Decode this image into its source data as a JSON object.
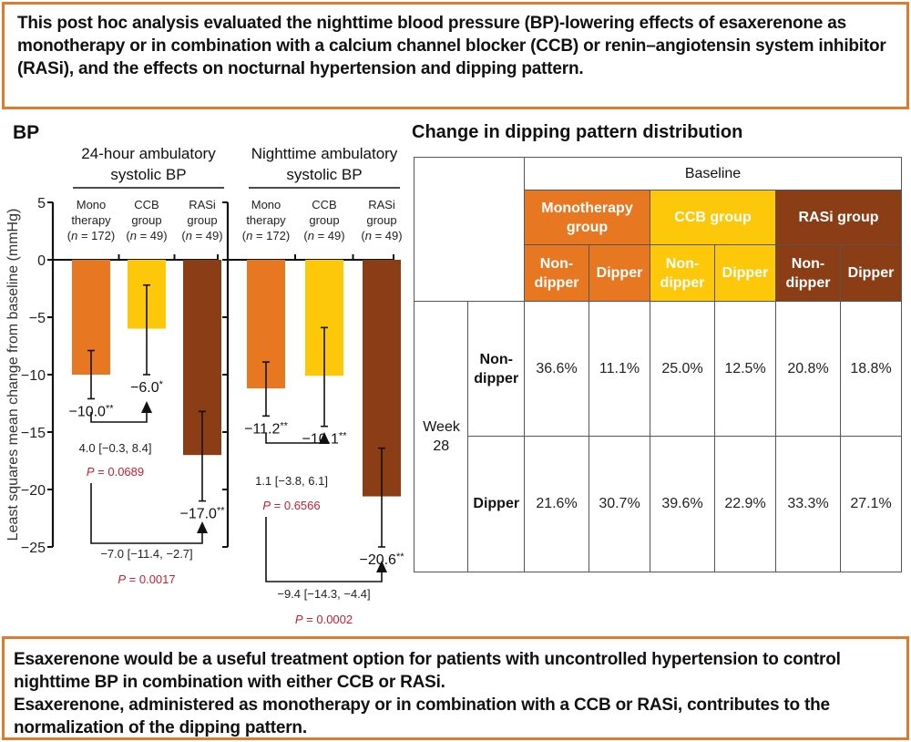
{
  "top_box": {
    "text": "This post hoc analysis evaluated the nighttime blood pressure (BP)-lowering effects of esaxerenone as monotherapy or in combination with a calcium channel blocker (CCB) or renin–angiotensin system inhibitor (RASi), and the effects on nocturnal hypertension and dipping pattern."
  },
  "bottom_box": {
    "line1": "Esaxerenone would be a useful treatment option for patients with uncontrolled hypertension to control nighttime BP in combination with either CCB or RASi.",
    "line2": "Esaxerenone, administered as monotherapy or in combination with a CCB or RASi, contributes to the normalization of the dipping pattern."
  },
  "colors": {
    "mono": "#e87722",
    "ccb": "#fdc70a",
    "rasi": "#8b3d16",
    "p_value": "#c8202e",
    "frame": "#e07b2e"
  },
  "chart_data": {
    "type": "bar",
    "title": "BP",
    "ylabel": "Least squares mean change from baseline (mmHg)",
    "ylim": [
      -25,
      5
    ],
    "yticks": [
      5,
      0,
      -5,
      -10,
      -15,
      -20,
      -25
    ],
    "ytick_labels": [
      "5",
      "0",
      "−5",
      "−10",
      "−15",
      "−20",
      "−25"
    ],
    "grid": false,
    "categories": [
      {
        "line1": "Mono",
        "line2": "therapy",
        "n": "172",
        "key": "mono"
      },
      {
        "line1": "CCB",
        "line2": "group",
        "n": "49",
        "key": "ccb"
      },
      {
        "line1": "RASi",
        "line2": "group",
        "n": "49",
        "key": "rasi"
      }
    ],
    "panels": [
      {
        "title_line1": "24-hour ambulatory",
        "title_line2": "systolic BP",
        "values": [
          -10.0,
          -6.0,
          -17.0
        ],
        "error_low": [
          -12.1,
          -10.0,
          -21.0
        ],
        "error_high": [
          -7.9,
          -2.2,
          -13.2
        ],
        "value_labels": [
          "−10.0",
          "−6.0",
          "−17.0"
        ],
        "significance": [
          "**",
          "*",
          "**"
        ],
        "comparisons": [
          {
            "from": 0,
            "to": 1,
            "diff": "4.0 [−0.3, 8.4]",
            "p_label": "P",
            "p_value": " = 0.0689"
          },
          {
            "from": 0,
            "to": 2,
            "diff": "−7.0 [−11.4, −2.7]",
            "p_label": "P",
            "p_value": " = 0.0017"
          }
        ]
      },
      {
        "title_line1": "Nighttime ambulatory",
        "title_line2": "systolic BP",
        "values": [
          -11.2,
          -10.1,
          -20.6
        ],
        "error_low": [
          -13.6,
          -14.5,
          -25.0
        ],
        "error_high": [
          -8.9,
          -5.9,
          -16.4
        ],
        "value_labels": [
          "−11.2",
          "−10.1",
          "−20.6"
        ],
        "significance": [
          "**",
          "**",
          "**"
        ],
        "comparisons": [
          {
            "from": 0,
            "to": 1,
            "diff": "1.1 [−3.8, 6.1]",
            "p_label": "P",
            "p_value": " = 0.6566"
          },
          {
            "from": 0,
            "to": 2,
            "diff": "−9.4 [−14.3, −4.4]",
            "p_label": "P",
            "p_value": " = 0.0002"
          }
        ]
      }
    ]
  },
  "table": {
    "title": "Change in dipping pattern distribution",
    "baseline_label": "Baseline",
    "groups": [
      {
        "label": "Monotherapy group",
        "key": "mono"
      },
      {
        "label": "CCB group",
        "key": "ccb"
      },
      {
        "label": "RASi group",
        "key": "rasi"
      }
    ],
    "sub_headers": [
      "Non-dipper",
      "Dipper"
    ],
    "week_label": "Week 28",
    "rows": [
      {
        "label": "Non-dipper",
        "values": [
          "36.6%",
          "11.1%",
          "25.0%",
          "12.5%",
          "20.8%",
          "18.8%"
        ]
      },
      {
        "label": "Dipper",
        "values": [
          "21.6%",
          "30.7%",
          "39.6%",
          "22.9%",
          "33.3%",
          "27.1%"
        ]
      }
    ]
  }
}
